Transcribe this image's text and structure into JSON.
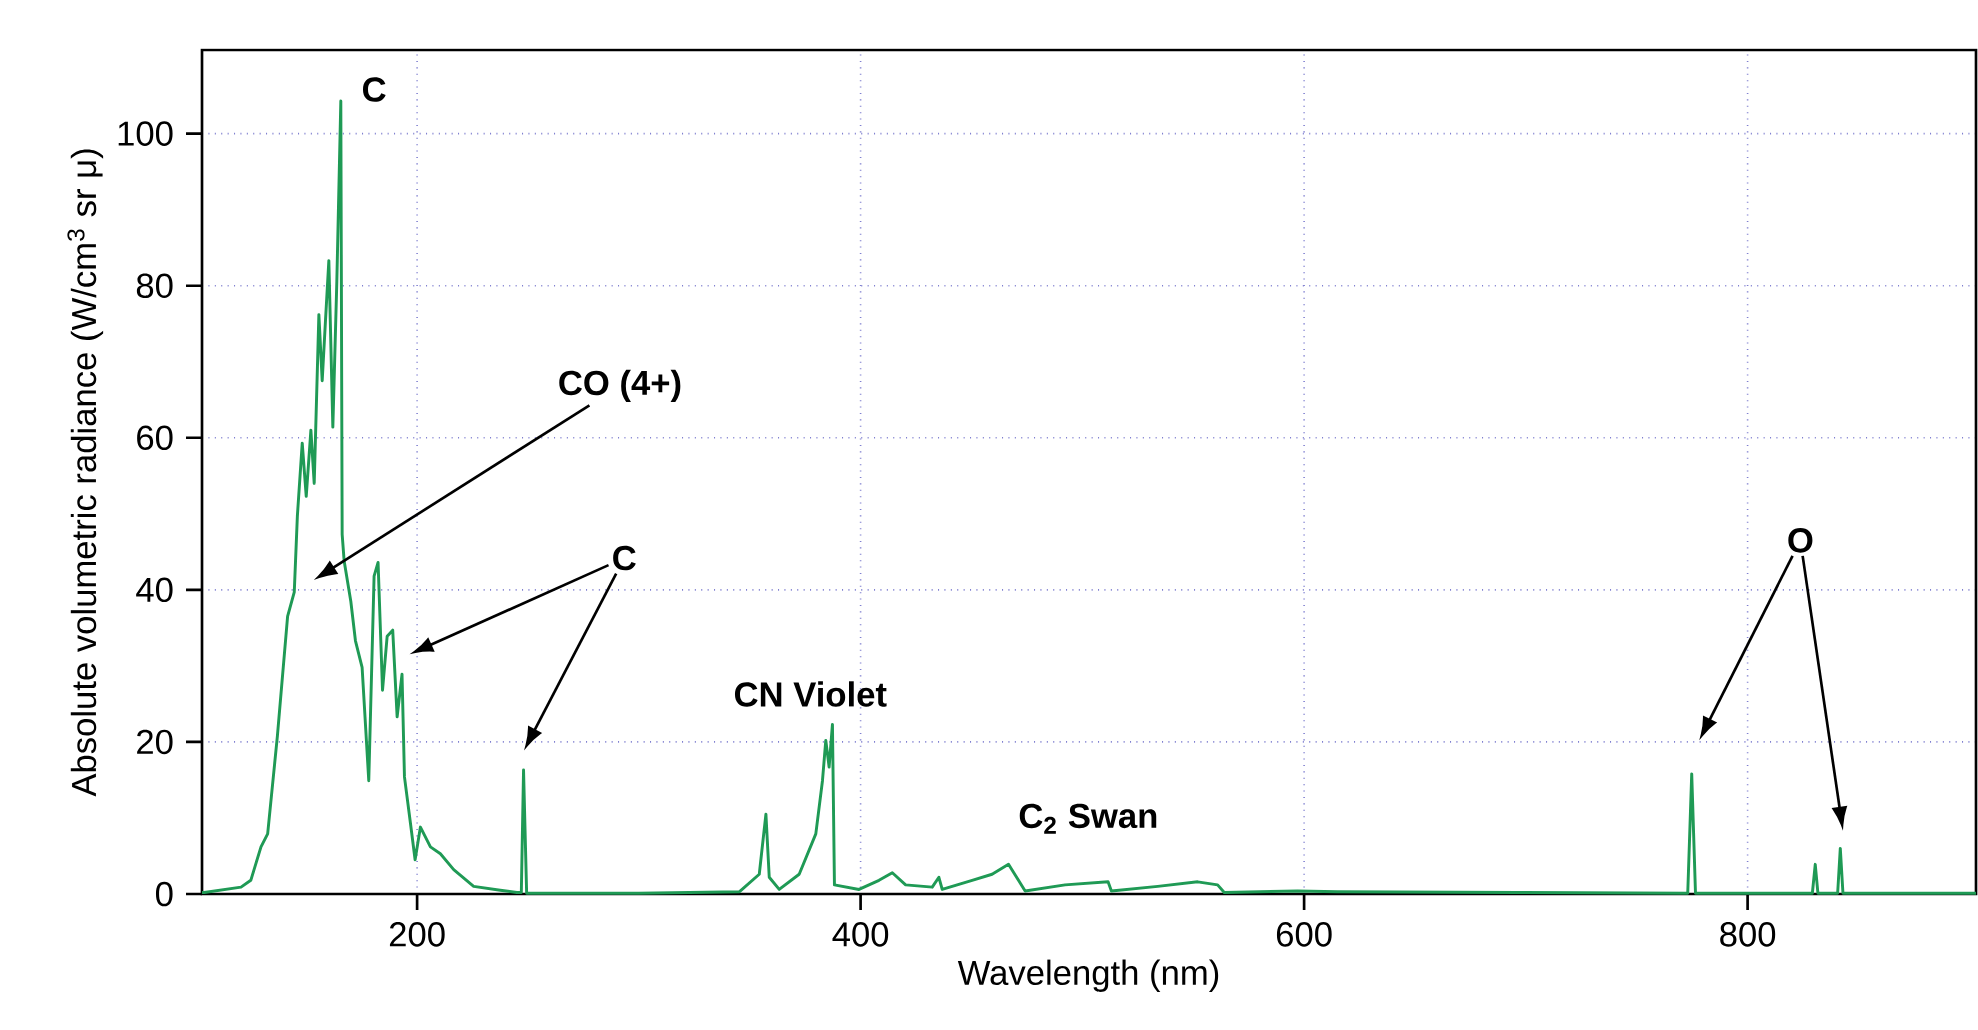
{
  "chart_data": {
    "type": "line",
    "xlabel": "Wavelength (nm)",
    "ylabel": "Absolute volumetric radiance (W/cm$^{3}$ sr μ)",
    "xlim": [
      103,
      903
    ],
    "ylim": [
      0,
      111
    ],
    "xticks": [
      200,
      400,
      600,
      800
    ],
    "yticks": [
      0,
      20,
      40,
      60,
      80,
      100
    ],
    "grid": true,
    "marker": "none",
    "line_style": "solid",
    "series": [
      {
        "color": "#1f9a55",
        "x": [
          103,
          104,
          120.6,
          125,
          129.6,
          132.6,
          137,
          141.6,
          144.6,
          146,
          148.2,
          150,
          152.1,
          153.6,
          155.7,
          157.2,
          158.7,
          160.2,
          162,
          163.8,
          165.6,
          166.2,
          167.1,
          170.1,
          172.2,
          175.2,
          178.2,
          180.6,
          182.4,
          184.4,
          186.5,
          189,
          191,
          193.2,
          194.3,
          197,
          199.1,
          201.5,
          206,
          210.5,
          216.5,
          225.5,
          237.5,
          245,
          247,
          248,
          249.4,
          300,
          345.4,
          354.3,
          357.3,
          358.8,
          363.3,
          372.3,
          379.8,
          382.8,
          384.3,
          385.8,
          387.3,
          388.2,
          399.3,
          408.3,
          414.3,
          420.3,
          432.3,
          435.3,
          436.8,
          450.3,
          459.3,
          466.7,
          474.2,
          492.2,
          511.6,
          513.1,
          534,
          552,
          561,
          564,
          597,
          615,
          696,
          773,
          774.8,
          776.5,
          829.2,
          830.5,
          831.7,
          840.6,
          841.8,
          843,
          903
        ],
        "values": [
          0.2,
          0.2,
          0.9,
          1.8,
          6.2,
          7.9,
          20.8,
          36.5,
          39.7,
          49.7,
          59.3,
          52.3,
          61,
          54,
          76.2,
          67.5,
          75.5,
          83.3,
          61.4,
          80.6,
          104.3,
          47.3,
          43.8,
          38.5,
          33.3,
          29.8,
          14.9,
          41.8,
          43.6,
          26.8,
          33.9,
          34.7,
          23.3,
          28.9,
          15.4,
          9.3,
          4.5,
          8.8,
          6.2,
          5.3,
          3.2,
          1.0,
          0.5,
          0.2,
          0.2,
          16.3,
          0.1,
          0.1,
          0.3,
          2.6,
          10.5,
          2.2,
          0.6,
          2.6,
          7.9,
          14.9,
          20.2,
          16.7,
          22.3,
          1.2,
          0.6,
          1.8,
          2.8,
          1.2,
          0.9,
          2.2,
          0.6,
          1.8,
          2.6,
          3.9,
          0.4,
          1.2,
          1.6,
          0.4,
          1.0,
          1.6,
          1.2,
          0.2,
          0.4,
          0.3,
          0.2,
          0.1,
          15.8,
          0.1,
          0.1,
          3.9,
          0.1,
          0.1,
          6.0,
          0.1,
          0.1
        ]
      }
    ],
    "annotations": [
      {
        "text": "C",
        "x": 165.6,
        "y": 104.3
      },
      "CO (4+)",
      "C",
      {
        "text": "CN Violet",
        "x": 387.3,
        "y": 22.3
      },
      {
        "text": "C$_{2}$ Swan",
        "x": 466.7,
        "y": 3.9
      },
      "O"
    ]
  }
}
